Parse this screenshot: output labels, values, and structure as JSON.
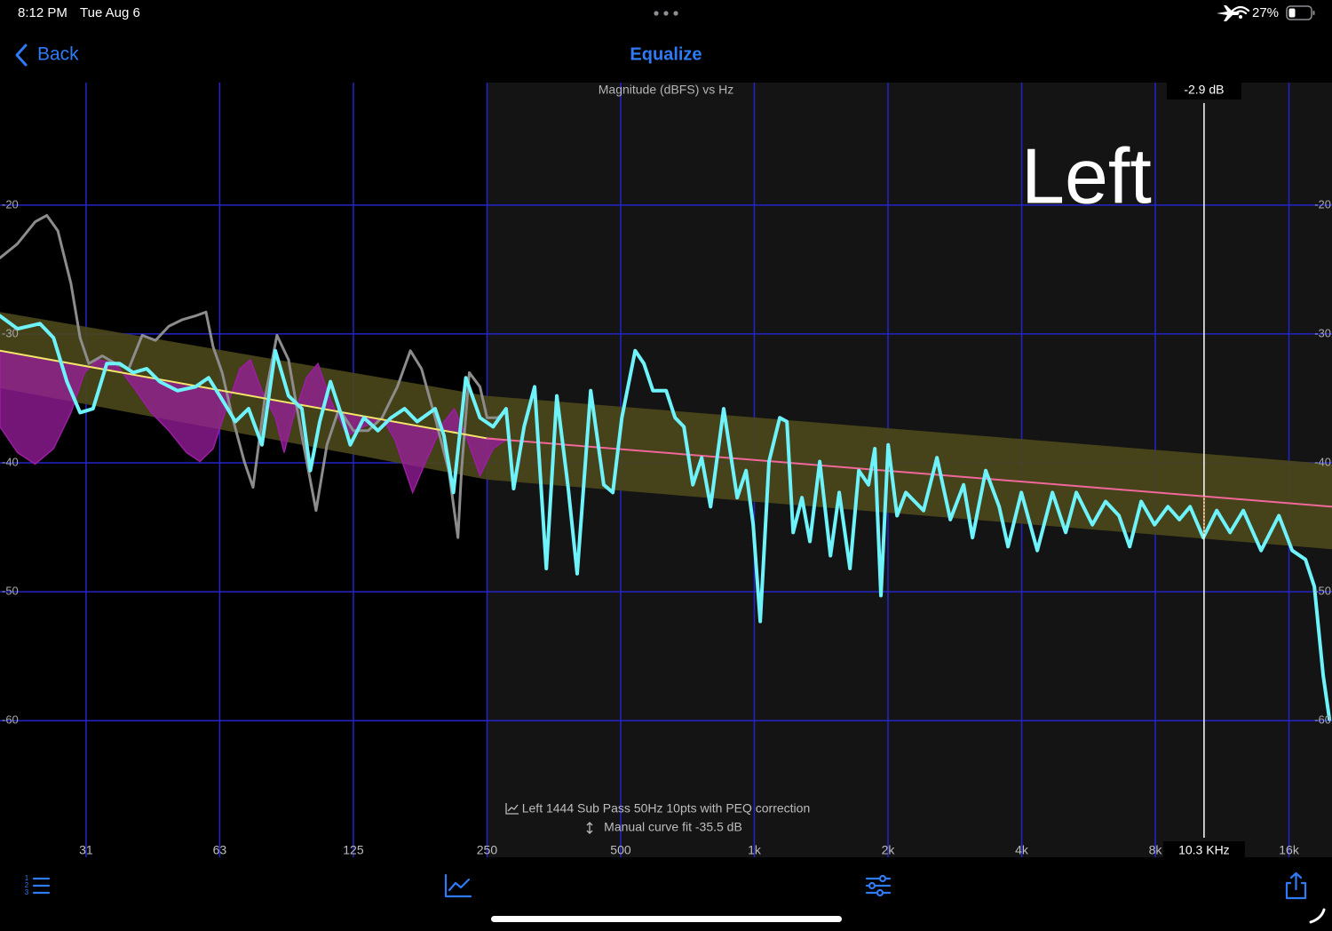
{
  "status_bar": {
    "time": "8:12 PM",
    "date": "Tue Aug 6",
    "battery": "27%"
  },
  "nav": {
    "back": "Back",
    "title": "Equalize"
  },
  "chart_data": {
    "type": "line",
    "title": "Magnitude (dBFS) vs Hz",
    "annotation": "Left",
    "x_scale": "log",
    "xlim": [
      20,
      20000
    ],
    "xticks": [
      {
        "value": 31.25,
        "label": "31"
      },
      {
        "value": 62.5,
        "label": "63"
      },
      125,
      250,
      500,
      {
        "value": 1000,
        "label": "1k"
      },
      {
        "value": 2000,
        "label": "2k"
      },
      {
        "value": 4000,
        "label": "4k"
      },
      {
        "value": 8000,
        "label": "8k"
      },
      {
        "value": 16000,
        "label": "16k"
      }
    ],
    "ylim": [
      -70.6,
      -10.5
    ],
    "yticks": [
      -20,
      -30,
      -40,
      -50,
      -60
    ],
    "grid": true,
    "grid_color": "#2424c8",
    "highlight_xlim": [
      250,
      20000
    ],
    "highlight_color": "#141414",
    "band": {
      "color": "#4b471a",
      "x": [
        20,
        250,
        20000
      ],
      "upper": [
        -28.3,
        -34.8,
        -40.1
      ],
      "lower": [
        -34.2,
        -41.3,
        -46.7
      ]
    },
    "correction": {
      "color": "#9b1ea0",
      "x": [
        20,
        21.9,
        24.0,
        26.4,
        28.9,
        31.0,
        33.2,
        36.4,
        39.9,
        43.8,
        48.0,
        52.6,
        56.4,
        60.4,
        64.7,
        69.4,
        73.3,
        77.8,
        83.4,
        87.3,
        91.5,
        98.0,
        104,
        111,
        121,
        132,
        145,
        155,
        170,
        182,
        200,
        211,
        224,
        241,
        258,
        276
      ],
      "values": [
        -37.2,
        -39.2,
        -40.1,
        -38.9,
        -36.1,
        -33.0,
        -32.0,
        -32.3,
        -34.1,
        -36.1,
        -37.5,
        -39.2,
        -39.9,
        -38.9,
        -35.8,
        -32.7,
        -32.0,
        -34.4,
        -36.5,
        -39.2,
        -36.5,
        -33.4,
        -32.3,
        -35.1,
        -37.9,
        -37.2,
        -36.5,
        -38.2,
        -42.3,
        -39.9,
        -36.8,
        -35.8,
        -37.9,
        -41.0,
        -38.9,
        -38.2
      ]
    },
    "series": [
      {
        "color": "#8c8c8c",
        "x": [
          20,
          21.9,
          24.0,
          25.5,
          27.0,
          28.9,
          30.3,
          31.7,
          34.0,
          36.4,
          39.0,
          41.8,
          44.8,
          48.0,
          51.4,
          55.1,
          58.2,
          60.4,
          63.3,
          66.8,
          71.0,
          74.3,
          78.9,
          84.1,
          89.3,
          95.7,
          103,
          109,
          116,
          125,
          135,
          145,
          157,
          168,
          178,
          191,
          205,
          215,
          219,
          228,
          241,
          250,
          264,
          274
        ],
        "values": [
          -24.1,
          -23.0,
          -21.3,
          -20.8,
          -22.0,
          -26.1,
          -30.3,
          -32.3,
          -31.7,
          -32.3,
          -32.7,
          -30.1,
          -30.5,
          -29.4,
          -28.9,
          -28.6,
          -28.3,
          -31.0,
          -33.0,
          -36.5,
          -39.9,
          -41.9,
          -35.1,
          -30.1,
          -32.0,
          -37.9,
          -43.7,
          -38.6,
          -35.8,
          -37.5,
          -37.5,
          -36.5,
          -34.1,
          -31.3,
          -32.7,
          -36.5,
          -40.6,
          -45.8,
          -40.6,
          -33.0,
          -34.1,
          -36.5,
          -36.5,
          -36.1
        ]
      },
      {
        "color": "#f2e66b",
        "x": [
          20,
          250
        ],
        "values": [
          -31.3,
          -38.1
        ]
      },
      {
        "color": "#f0689a",
        "x": [
          250,
          20000
        ],
        "values": [
          -38.1,
          -43.4
        ]
      },
      {
        "color": "#6ef3fb",
        "x": [
          20,
          21.9,
          24.6,
          26.4,
          28.3,
          30.3,
          32.4,
          34.8,
          37.2,
          39.9,
          42.8,
          45.8,
          50.2,
          55.1,
          59.0,
          63.3,
          67.8,
          72.6,
          77.8,
          83.4,
          89.3,
          95.7,
          100,
          105,
          111,
          118,
          123,
          132,
          142,
          152,
          163,
          174,
          191,
          200,
          210,
          224,
          241,
          258,
          276,
          287,
          303,
          320,
          340,
          359,
          381,
          399,
          428,
          458,
          480,
          503,
          539,
          564,
          591,
          633,
          663,
          694,
          727,
          761,
          797,
          853,
          915,
          958,
          994,
          1031,
          1079,
          1141,
          1184,
          1223,
          1280,
          1334,
          1404,
          1484,
          1553,
          1642,
          1719,
          1808,
          1868,
          1928,
          2002,
          2096,
          2194,
          2405,
          2578,
          2763,
          2960,
          3100,
          3320,
          3560,
          3727,
          3994,
          4338,
          4692,
          5026,
          5312,
          5772,
          6182,
          6626,
          7004,
          7434,
          7968,
          8540,
          9064,
          9580,
          10260,
          11000,
          11788,
          12626,
          13846,
          15182,
          16270,
          17430,
          18252,
          19108,
          19740
        ],
        "values": [
          -28.6,
          -29.6,
          -29.2,
          -30.3,
          -33.7,
          -36.1,
          -35.8,
          -32.3,
          -32.3,
          -33.0,
          -32.7,
          -33.7,
          -34.4,
          -34.1,
          -33.4,
          -35.1,
          -36.8,
          -35.8,
          -38.6,
          -31.3,
          -34.8,
          -35.8,
          -40.6,
          -36.8,
          -33.7,
          -36.5,
          -38.6,
          -36.5,
          -37.5,
          -36.5,
          -35.8,
          -36.8,
          -35.8,
          -37.9,
          -42.3,
          -33.4,
          -36.5,
          -37.2,
          -35.8,
          -42.0,
          -37.2,
          -34.1,
          -48.2,
          -34.8,
          -42.0,
          -48.6,
          -34.4,
          -41.7,
          -42.3,
          -36.5,
          -31.3,
          -32.3,
          -34.4,
          -34.4,
          -36.5,
          -37.2,
          -41.7,
          -39.6,
          -43.4,
          -35.8,
          -42.7,
          -40.6,
          -44.8,
          -52.3,
          -39.9,
          -36.5,
          -36.8,
          -45.4,
          -42.7,
          -46.1,
          -39.9,
          -47.2,
          -42.3,
          -48.2,
          -40.6,
          -41.7,
          -38.9,
          -50.3,
          -38.6,
          -44.1,
          -42.3,
          -43.7,
          -39.6,
          -44.4,
          -41.7,
          -45.8,
          -40.6,
          -43.4,
          -46.5,
          -42.3,
          -46.8,
          -42.3,
          -45.4,
          -42.3,
          -44.8,
          -43.0,
          -44.1,
          -46.5,
          -43.0,
          -44.8,
          -43.4,
          -44.4,
          -43.4,
          -45.8,
          -43.7,
          -45.4,
          -43.7,
          -46.8,
          -44.1,
          -46.8,
          -47.5,
          -49.6,
          -56.5,
          -59.9
        ]
      }
    ],
    "cursor": {
      "x": {
        "value": 10300,
        "label": "10.3 KHz"
      },
      "delta": {
        "value": -2.9,
        "label": "-2.9 dB"
      }
    },
    "notes": [
      "Left 1444 Sub Pass 50Hz 10pts with PEQ correction",
      "Manual curve fit -35.5 dB"
    ]
  }
}
